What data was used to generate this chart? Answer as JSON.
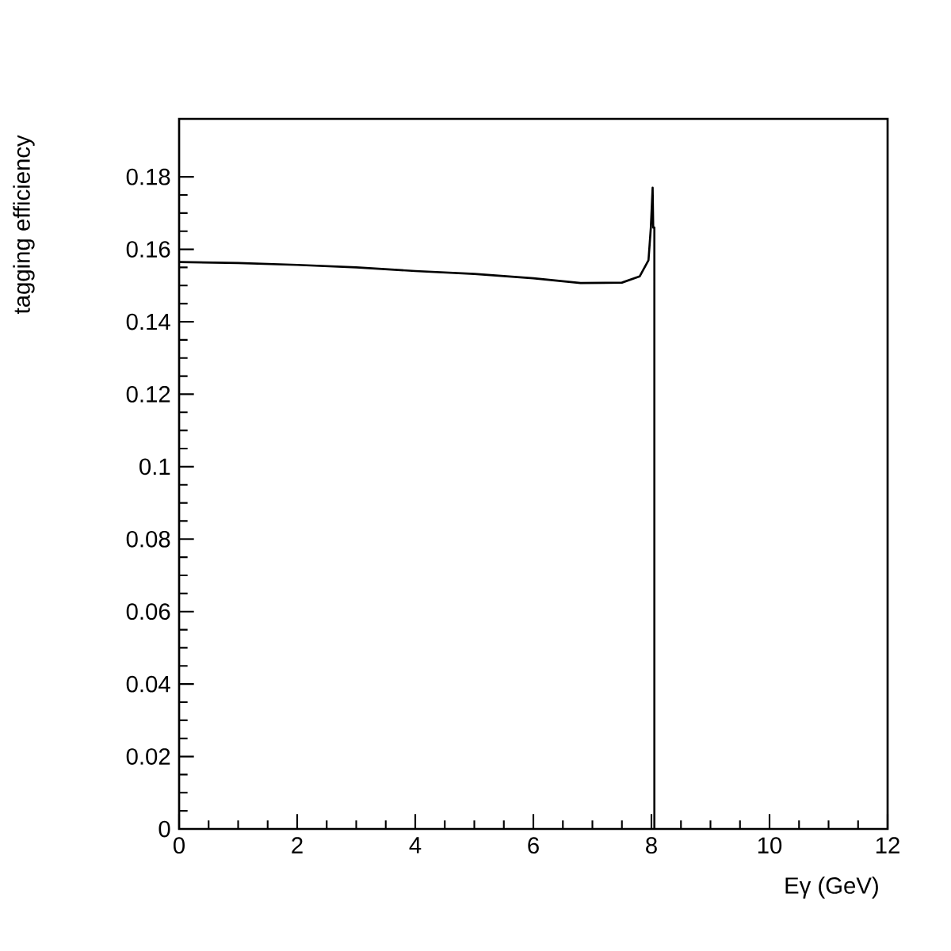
{
  "chart_data": {
    "type": "line",
    "xlabel": "Eγ (GeV)",
    "ylabel": "tagging efficiency",
    "x": [
      0,
      1,
      2,
      3,
      4,
      5,
      6,
      6.8,
      7.5,
      7.8,
      7.95,
      7.99,
      8.02,
      8.03,
      8.05,
      8.05
    ],
    "series": [
      {
        "color": "#000000",
        "values": [
          0.1565,
          0.1562,
          0.1557,
          0.155,
          0.154,
          0.1532,
          0.152,
          0.1507,
          0.1508,
          0.1525,
          0.157,
          0.166,
          0.177,
          0.166,
          0.166,
          0
        ]
      }
    ],
    "xlim": [
      0,
      12
    ],
    "xticks": [
      0,
      2,
      4,
      6,
      8,
      10,
      12
    ],
    "ylim": [
      0,
      0.196
    ],
    "yticks": [
      0,
      0.02,
      0.04,
      0.06,
      0.08,
      0.1,
      0.12,
      0.14,
      0.16,
      0.18
    ],
    "grid": false,
    "marker": "none",
    "line_style": "solid"
  }
}
